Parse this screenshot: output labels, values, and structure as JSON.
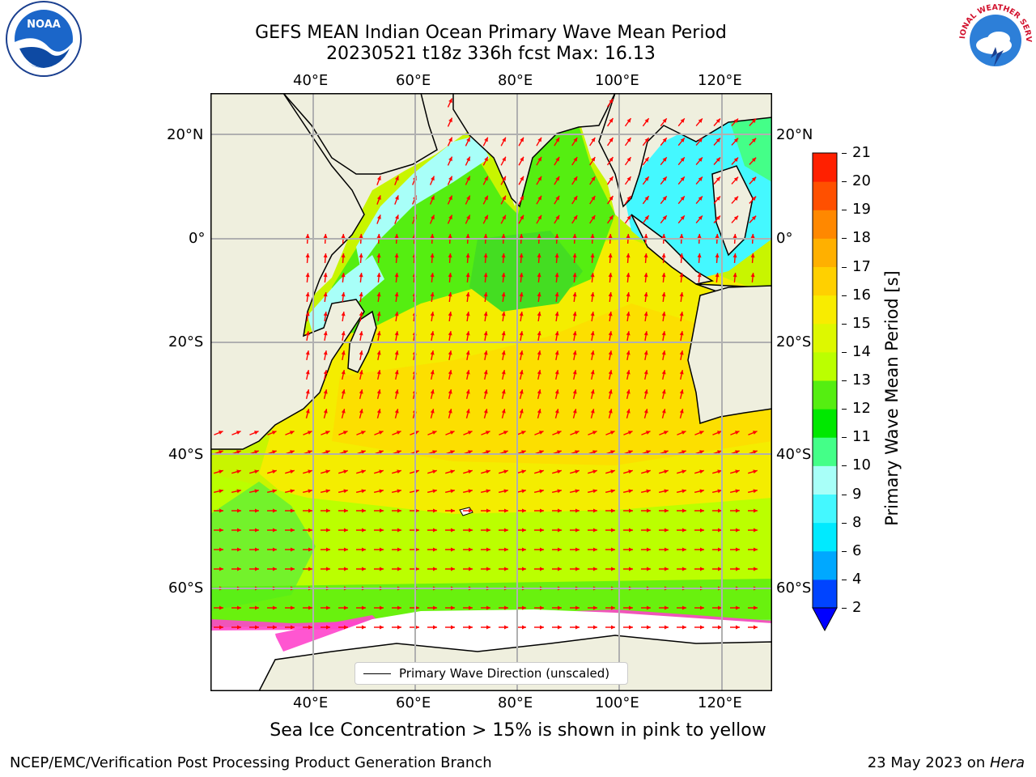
{
  "title": {
    "line1": "GEFS MEAN Indian Ocean Primary Wave Mean Period",
    "line2": "20230521 t18z 336h fcst   Max: 16.13"
  },
  "map": {
    "lon_ticks": [
      "40°E",
      "60°E",
      "80°E",
      "100°E",
      "120°E"
    ],
    "lat_ticks": [
      "20°N",
      "0°",
      "20°S",
      "40°S",
      "60°S"
    ],
    "extent": {
      "lon": [
        20,
        130
      ],
      "lat": [
        -70,
        28
      ]
    },
    "land_color": "#efefde",
    "ice_color": "#ffffff",
    "arrow_color": "#ff0000",
    "legend_label": "Primary Wave Direction (unscaled)"
  },
  "colorbar": {
    "label": "Primary Wave Mean Period [s]",
    "ticks": [
      "2",
      "4",
      "6",
      "8",
      "9",
      "10",
      "11",
      "12",
      "13",
      "14",
      "15",
      "16",
      "17",
      "18",
      "19",
      "20",
      "21"
    ],
    "colors": [
      "#0044ff",
      "#00a8ff",
      "#00eaff",
      "#44f8ff",
      "#a8fff8",
      "#44ff88",
      "#00e800",
      "#55ee11",
      "#bbff00",
      "#ddf800",
      "#f8ec00",
      "#ffd000",
      "#ffb000",
      "#ff8800",
      "#ff5000",
      "#ff2000"
    ],
    "under_color": "#0000ff"
  },
  "note": "Sea Ice Concentration > 15% is shown in pink to yellow",
  "footer": {
    "left": "NCEP/EMC/Verification Post Processing Product Generation Branch",
    "date": "23 May 2023 on ",
    "machine": "Hera"
  },
  "logos": {
    "noaa": "NOAA",
    "nws": "NATIONAL WEATHER SERVICE"
  }
}
